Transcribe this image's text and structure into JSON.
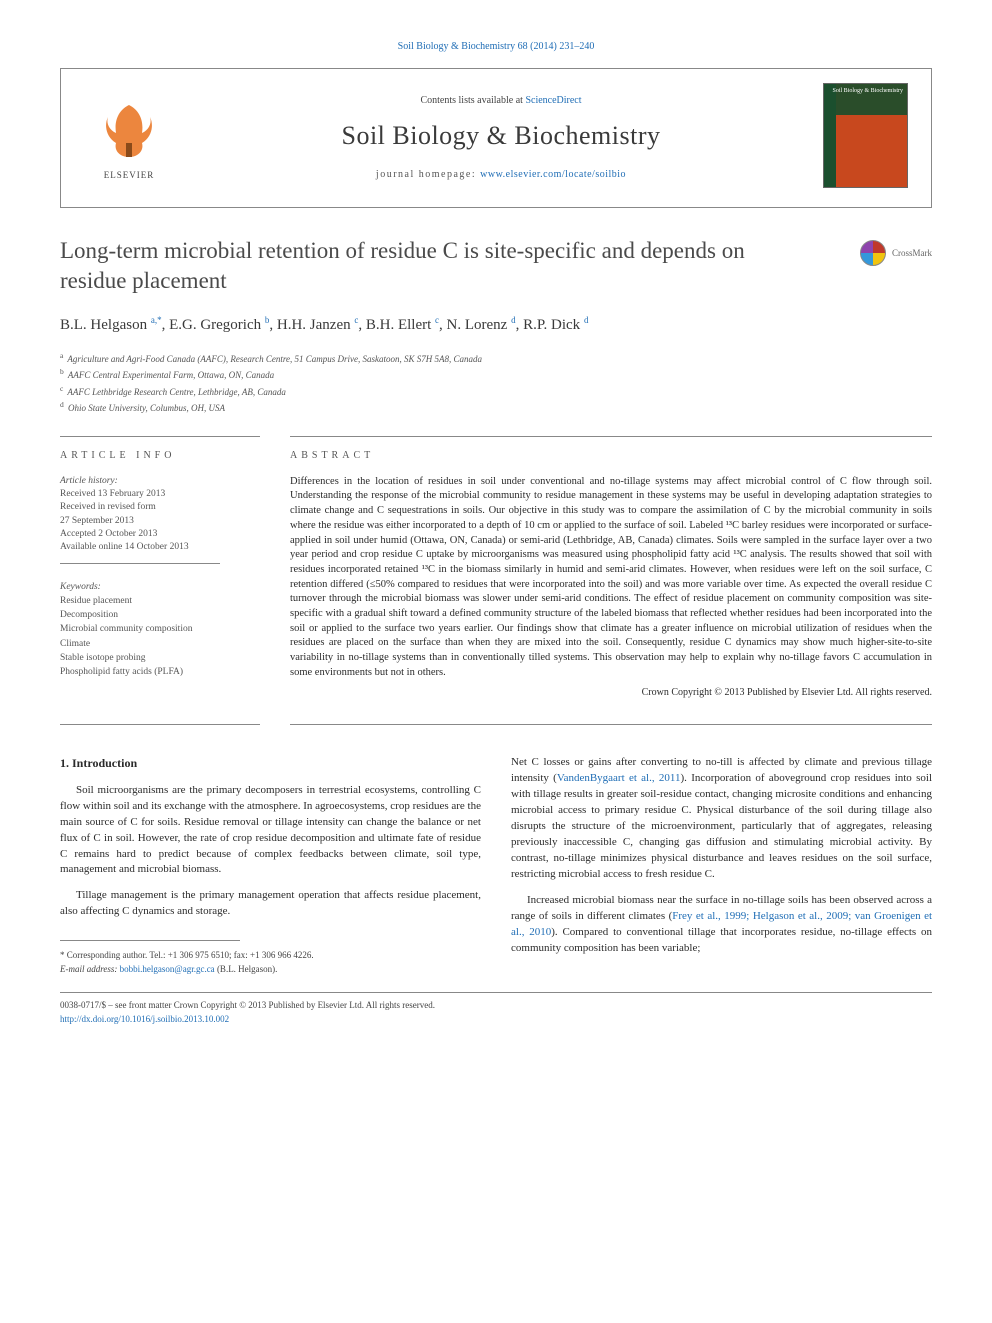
{
  "journal_ref": "Soil Biology & Biochemistry 68 (2014) 231–240",
  "header": {
    "contents_prefix": "Contents lists available at ",
    "contents_link": "ScienceDirect",
    "journal_name": "Soil Biology & Biochemistry",
    "homepage_prefix": "journal homepage: ",
    "homepage_url": "www.elsevier.com/locate/soilbio",
    "publisher": "ELSEVIER",
    "cover_text": "Soil Biology &\nBiochemistry"
  },
  "crossmark": "CrossMark",
  "title": "Long-term microbial retention of residue C is site-specific and depends on residue placement",
  "authors_html": "B.L. Helgason <sup>a,*</sup>, E.G. Gregorich <sup>b</sup>, H.H. Janzen <sup>c</sup>, B.H. Ellert <sup>c</sup>, N. Lorenz <sup>d</sup>, R.P. Dick <sup>d</sup>",
  "affiliations": [
    {
      "sup": "a",
      "text": "Agriculture and Agri-Food Canada (AAFC), Research Centre, 51 Campus Drive, Saskatoon, SK S7H 5A8, Canada"
    },
    {
      "sup": "b",
      "text": "AAFC Central Experimental Farm, Ottawa, ON, Canada"
    },
    {
      "sup": "c",
      "text": "AAFC Lethbridge Research Centre, Lethbridge, AB, Canada"
    },
    {
      "sup": "d",
      "text": "Ohio State University, Columbus, OH, USA"
    }
  ],
  "article_info_label": "ARTICLE INFO",
  "abstract_label": "ABSTRACT",
  "history": {
    "label": "Article history:",
    "received": "Received 13 February 2013",
    "revised": "Received in revised form\n27 September 2013",
    "accepted": "Accepted 2 October 2013",
    "online": "Available online 14 October 2013"
  },
  "keywords": {
    "label": "Keywords:",
    "items": [
      "Residue placement",
      "Decomposition",
      "Microbial community composition",
      "Climate",
      "Stable isotope probing",
      "Phospholipid fatty acids (PLFA)"
    ]
  },
  "abstract": "Differences in the location of residues in soil under conventional and no-tillage systems may affect microbial control of C flow through soil. Understanding the response of the microbial community to residue management in these systems may be useful in developing adaptation strategies to climate change and C sequestrations in soils. Our objective in this study was to compare the assimilation of C by the microbial community in soils where the residue was either incorporated to a depth of 10 cm or applied to the surface of soil. Labeled ¹³C barley residues were incorporated or surface-applied in soil under humid (Ottawa, ON, Canada) or semi-arid (Lethbridge, AB, Canada) climates. Soils were sampled in the surface layer over a two year period and crop residue C uptake by microorganisms was measured using phospholipid fatty acid ¹³C analysis. The results showed that soil with residues incorporated retained ¹³C in the biomass similarly in humid and semi-arid climates. However, when residues were left on the soil surface, C retention differed (≤50% compared to residues that were incorporated into the soil) and was more variable over time. As expected the overall residue C turnover through the microbial biomass was slower under semi-arid conditions. The effect of residue placement on community composition was site-specific with a gradual shift toward a defined community structure of the labeled biomass that reflected whether residues had been incorporated into the soil or applied to the surface two years earlier. Our findings show that climate has a greater influence on microbial utilization of residues when the residues are placed on the surface than when they are mixed into the soil. Consequently, residue C dynamics may show much higher-site-to-site variability in no-tillage systems than in conventionally tilled systems. This observation may help to explain why no-tillage favors C accumulation in some environments but not in others.",
  "copyright_abstract": "Crown Copyright © 2013 Published by Elsevier Ltd. All rights reserved.",
  "intro_heading": "1.  Introduction",
  "intro_p1": "Soil microorganisms are the primary decomposers in terrestrial ecosystems, controlling C flow within soil and its exchange with the atmosphere. In agroecosystems, crop residues are the main source of C for soils. Residue removal or tillage intensity can change the balance or net flux of C in soil. However, the rate of crop residue decomposition and ultimate fate of residue C remains hard to predict because of complex feedbacks between climate, soil type, management and microbial biomass.",
  "intro_p2": "Tillage management is the primary management operation that affects residue placement, also affecting C dynamics and storage.",
  "intro_p3_pre": "Net C losses or gains after converting to no-till is affected by climate and previous tillage intensity (",
  "intro_p3_link": "VandenBygaart et al., 2011",
  "intro_p3_post": "). Incorporation of aboveground crop residues into soil with tillage results in greater soil-residue contact, changing microsite conditions and enhancing microbial access to primary residue C. Physical disturbance of the soil during tillage also disrupts the structure of the microenvironment, particularly that of aggregates, releasing previously inaccessible C, changing gas diffusion and stimulating microbial activity. By contrast, no-tillage minimizes physical disturbance and leaves residues on the soil surface, restricting microbial access to fresh residue C.",
  "intro_p4_pre": "Increased microbial biomass near the surface in no-tillage soils has been observed across a range of soils in different climates (",
  "intro_p4_link": "Frey et al., 1999; Helgason et al., 2009; van Groenigen et al., 2010",
  "intro_p4_post": "). Compared to conventional tillage that incorporates residue, no-tillage effects on community composition has been variable;",
  "corresponding": {
    "line1": "* Corresponding author. Tel.: +1 306 975 6510; fax: +1 306 966 4226.",
    "line2_pre": "E-mail address: ",
    "email": "bobbi.helgason@agr.gc.ca",
    "line2_post": " (B.L. Helgason)."
  },
  "footer": {
    "line1": "0038-0717/$ – see front matter Crown Copyright © 2013 Published by Elsevier Ltd. All rights reserved.",
    "doi": "http://dx.doi.org/10.1016/j.soilbio.2013.10.002"
  },
  "colors": {
    "link": "#1f6db5",
    "text": "#2b2b2b",
    "muted": "#555555",
    "rule": "#888888",
    "elsevier_orange": "#e9711c",
    "cover_green": "#2a4d2a",
    "cover_orange": "#c8481e"
  },
  "typography": {
    "body_pt": 11,
    "abstract_pt": 10.5,
    "title_pt": 23,
    "journal_name_pt": 26,
    "small_pt": 9
  }
}
